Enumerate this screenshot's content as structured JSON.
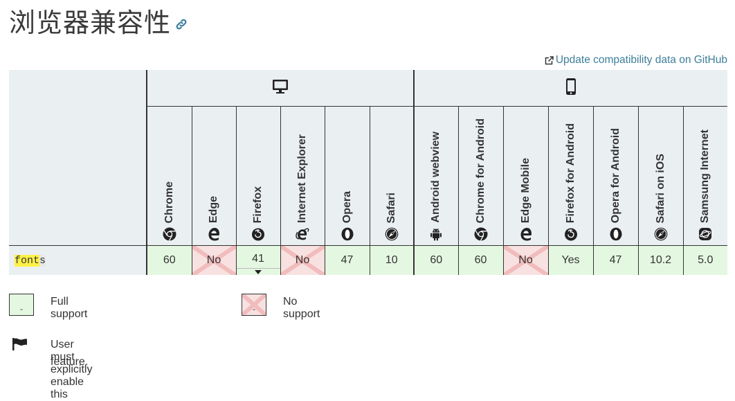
{
  "heading": {
    "title": "浏览器兼容性"
  },
  "github_link": {
    "label": "Update compatibility data on GitHub"
  },
  "platforms": [
    {
      "name": "desktop",
      "icon": "desktop-icon"
    },
    {
      "name": "mobile",
      "icon": "mobile-icon"
    }
  ],
  "browsers": [
    {
      "name": "Chrome",
      "icon": "chrome-icon",
      "platform": "desktop"
    },
    {
      "name": "Edge",
      "icon": "edge-icon",
      "platform": "desktop"
    },
    {
      "name": "Firefox",
      "icon": "firefox-icon",
      "platform": "desktop"
    },
    {
      "name": "Internet Explorer",
      "icon": "ie-icon",
      "platform": "desktop"
    },
    {
      "name": "Opera",
      "icon": "opera-icon",
      "platform": "desktop"
    },
    {
      "name": "Safari",
      "icon": "safari-icon",
      "platform": "desktop"
    },
    {
      "name": "Android webview",
      "icon": "android-icon",
      "platform": "mobile"
    },
    {
      "name": "Chrome for Android",
      "icon": "chrome-icon",
      "platform": "mobile"
    },
    {
      "name": "Edge Mobile",
      "icon": "edge-icon",
      "platform": "mobile"
    },
    {
      "name": "Firefox for Android",
      "icon": "firefox-icon",
      "platform": "mobile"
    },
    {
      "name": "Opera for Android",
      "icon": "opera-icon",
      "platform": "mobile"
    },
    {
      "name": "Safari on iOS",
      "icon": "safari-icon",
      "platform": "mobile"
    },
    {
      "name": "Samsung Internet",
      "icon": "samsung-icon",
      "platform": "mobile"
    }
  ],
  "feature": {
    "name_highlight": "font",
    "name_rest": "s",
    "support": [
      {
        "value": "60",
        "status": "yes"
      },
      {
        "value": "No",
        "status": "no"
      },
      {
        "value": "41",
        "status": "yes",
        "expandable": true
      },
      {
        "value": "No",
        "status": "no"
      },
      {
        "value": "47",
        "status": "yes"
      },
      {
        "value": "10",
        "status": "yes"
      },
      {
        "value": "60",
        "status": "yes"
      },
      {
        "value": "60",
        "status": "yes"
      },
      {
        "value": "No",
        "status": "no"
      },
      {
        "value": "Yes",
        "status": "yes"
      },
      {
        "value": "47",
        "status": "yes"
      },
      {
        "value": "10.2",
        "status": "yes"
      },
      {
        "value": "5.0",
        "status": "yes"
      }
    ]
  },
  "legend": {
    "full_support": "Full support",
    "no_support": "No support",
    "flag_line1": "User must explicitly enable this",
    "flag_line2": "feature.",
    "swatch_mark": "-"
  },
  "colors": {
    "yes_bg": "#e4f8e1",
    "no_bg": "#f8e1e1",
    "header_bg": "#eaeff2",
    "link": "#3d7e9a",
    "highlight": "#fff145"
  }
}
